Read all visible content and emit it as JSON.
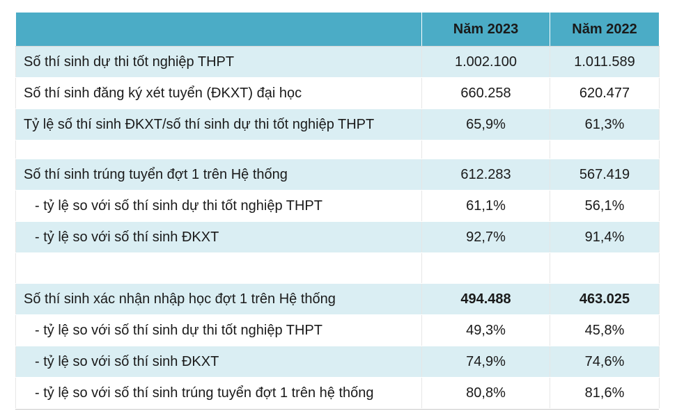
{
  "header": {
    "label": "",
    "col_2023": "Năm 2023",
    "col_2022": "Năm 2022"
  },
  "rows": [
    {
      "label": "Số thí sinh dự thi tốt nghiệp THPT",
      "y2023": "1.002.100",
      "y2022": "1.011.589"
    },
    {
      "label": "Số thí sinh đăng ký xét tuyển (ĐKXT) đại học",
      "y2023": "660.258",
      "y2022": "620.477"
    },
    {
      "label": "Tỷ lệ số thí sinh ĐKXT/số thí sinh dự thi tốt nghiệp THPT",
      "y2023": "65,9%",
      "y2022": "61,3%"
    },
    {
      "label": "",
      "y2023": "",
      "y2022": ""
    },
    {
      "label": "Số thí sinh trúng tuyển đợt 1 trên Hệ thống",
      "y2023": "612.283",
      "y2022": "567.419"
    },
    {
      "label": "- tỷ lệ so với số thí sinh dự thi tốt nghiệp THPT",
      "y2023": "61,1%",
      "y2022": "56,1%"
    },
    {
      "label": "- tỷ lệ so với số thí sinh ĐKXT",
      "y2023": "92,7%",
      "y2022": "91,4%"
    },
    {
      "label": "",
      "y2023": "",
      "y2022": ""
    },
    {
      "label": "Số thí sinh xác nhận nhập học đợt 1 trên Hệ thống",
      "y2023": "494.488",
      "y2022": "463.025"
    },
    {
      "label": "- tỷ lệ so với số thí sinh dự thi tốt nghiệp THPT",
      "y2023": "49,3%",
      "y2022": "45,8%"
    },
    {
      "label": "- tỷ lệ so với số thí sinh ĐKXT",
      "y2023": "74,9%",
      "y2022": "74,6%"
    },
    {
      "label": "- tỷ lệ so với số thí sinh trúng tuyển đợt 1 trên hệ thống",
      "y2023": "80,8%",
      "y2022": "81,6%"
    }
  ]
}
